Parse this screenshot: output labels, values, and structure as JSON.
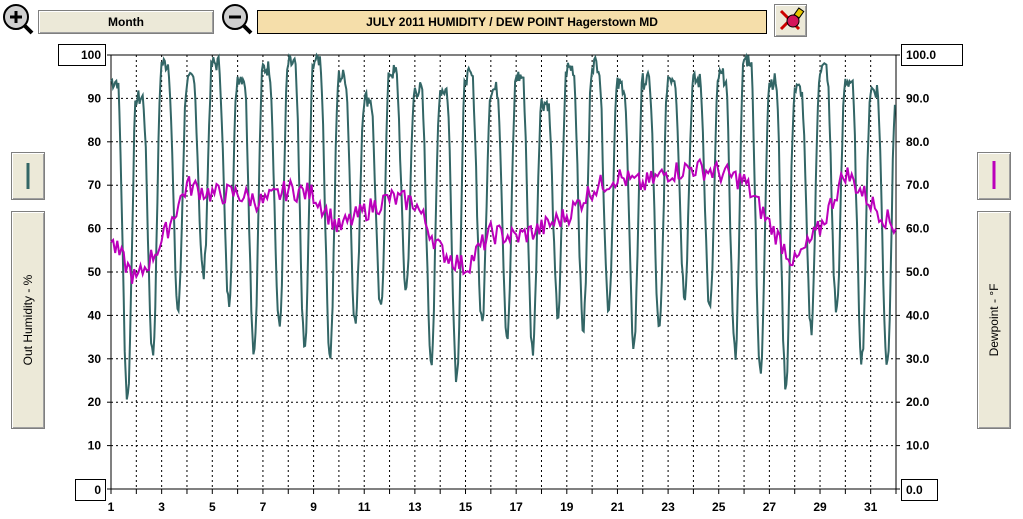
{
  "toolbar": {
    "period_label": "Month",
    "title": "JULY 2011  HUMIDITY / DEW POINT  Hagerstown MD",
    "zoom_in_icon": "zoom-in-icon",
    "zoom_out_icon": "zoom-out-icon",
    "color_tool_icon": "paint-palette-icon"
  },
  "left_axis": {
    "title": "Out Humidity - %",
    "max_label": "100",
    "min_label": "0"
  },
  "right_axis": {
    "title": "Dewpoint - °F",
    "max_label": "100.0",
    "min_label": "0.0"
  },
  "chart_data": {
    "type": "line",
    "xlabel": "",
    "x_ticks": [
      "1",
      "3",
      "5",
      "7",
      "9",
      "11",
      "13",
      "15",
      "17",
      "19",
      "21",
      "23",
      "25",
      "27",
      "29",
      "31"
    ],
    "xlim": [
      1,
      32
    ],
    "grid": true,
    "y_left": {
      "ylabel": "Out Humidity - %",
      "ylim": [
        0,
        100
      ],
      "ticks": [
        "0",
        "10",
        "20",
        "30",
        "40",
        "50",
        "60",
        "70",
        "80",
        "90",
        "100"
      ]
    },
    "y_right": {
      "ylabel": "Dewpoint - °F",
      "ylim": [
        0,
        100
      ],
      "ticks": [
        "0.0",
        "10.0",
        "20.0",
        "30.0",
        "40.0",
        "50.0",
        "60.0",
        "70.0",
        "80.0",
        "90.0",
        "100.0"
      ]
    },
    "series": [
      {
        "name": "Out Humidity - %",
        "axis": "left",
        "color": "#336666",
        "day_max": [
          94,
          90,
          98,
          94,
          98,
          95,
          97,
          98,
          99,
          95,
          90,
          96,
          92,
          92,
          95,
          92,
          95,
          89,
          97,
          98,
          93,
          94,
          95,
          94,
          95,
          99,
          94,
          92,
          97,
          94,
          92
        ],
        "day_min": [
          21,
          31,
          41,
          49,
          43,
          32,
          37,
          32,
          31,
          38,
          41,
          46,
          30,
          26,
          38,
          35,
          32,
          40,
          37,
          42,
          33,
          36,
          45,
          41,
          31,
          26,
          24,
          37,
          41,
          30,
          29
        ]
      },
      {
        "name": "Dewpoint - °F",
        "axis": "right",
        "color": "#bb00bb",
        "daily": [
          57,
          48,
          57,
          70,
          68,
          68,
          66,
          69,
          68,
          60,
          64,
          67,
          66,
          55,
          51,
          59,
          58,
          60,
          63,
          69,
          72,
          70,
          73,
          74,
          73,
          71,
          61,
          52,
          60,
          73,
          66,
          60
        ]
      }
    ]
  }
}
